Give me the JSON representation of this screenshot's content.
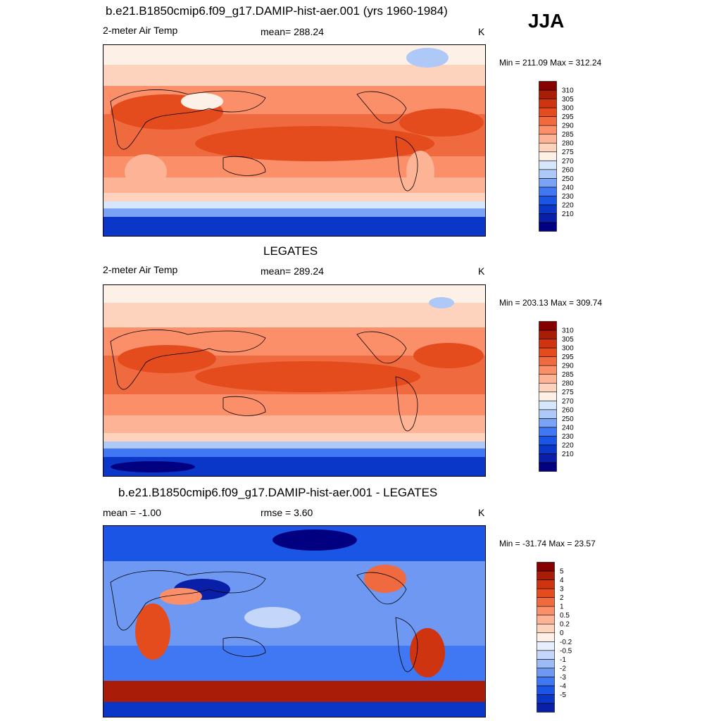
{
  "season": "JJA",
  "colors": {
    "temp_scale": [
      "#000080",
      "#0a1fa8",
      "#0a37c8",
      "#1a55e6",
      "#3f78f2",
      "#7aa3f5",
      "#aec8f8",
      "#d6e6fb",
      "#fdf0e6",
      "#fdd3bd",
      "#fdb395",
      "#fb8f6a",
      "#f06a3f",
      "#e44c1e",
      "#cf3410",
      "#a81c08",
      "#860000"
    ],
    "diff_scale": [
      "#000080",
      "#0a1fa8",
      "#0a37c8",
      "#1a55e6",
      "#3f78f2",
      "#6f98f3",
      "#9cbaf6",
      "#c4d7fa",
      "#e6effd",
      "#fdf0e6",
      "#fdd3bd",
      "#fdb395",
      "#fb8f6a",
      "#f06a3f",
      "#e44c1e",
      "#cf3410",
      "#a81c08",
      "#860000"
    ]
  },
  "panels": [
    {
      "title": "b.e21.B1850cmip6.f09_g17.DAMIP-hist-aer.001 (yrs 1960-1984)",
      "left_label": "2-meter Air Temp",
      "center_label": "mean= 288.24",
      "units": "K",
      "minmax": "Min = 211.09 Max = 312.24",
      "colorbar_labels": [
        "310",
        "305",
        "300",
        "295",
        "290",
        "285",
        "280",
        "275",
        "270",
        "260",
        "250",
        "240",
        "230",
        "220",
        "210"
      ]
    },
    {
      "title": "LEGATES",
      "left_label": "2-meter Air Temp",
      "center_label": "mean= 289.24",
      "units": "K",
      "minmax": "Min = 203.13 Max = 309.74",
      "colorbar_labels": [
        "310",
        "305",
        "300",
        "295",
        "290",
        "285",
        "280",
        "275",
        "270",
        "260",
        "250",
        "240",
        "230",
        "220",
        "210"
      ]
    },
    {
      "title": "b.e21.B1850cmip6.f09_g17.DAMIP-hist-aer.001 - LEGATES",
      "left_label": "mean =  -1.00",
      "center_label": "rmse =   3.60",
      "units": "K",
      "minmax": "Min = -31.74 Max =  23.57",
      "colorbar_labels": [
        "5",
        "4",
        "3",
        "2",
        "1",
        "0.5",
        "0.2",
        "0",
        "-0.2",
        "-0.5",
        "-1",
        "-2",
        "-3",
        "-4",
        "-5"
      ]
    }
  ]
}
